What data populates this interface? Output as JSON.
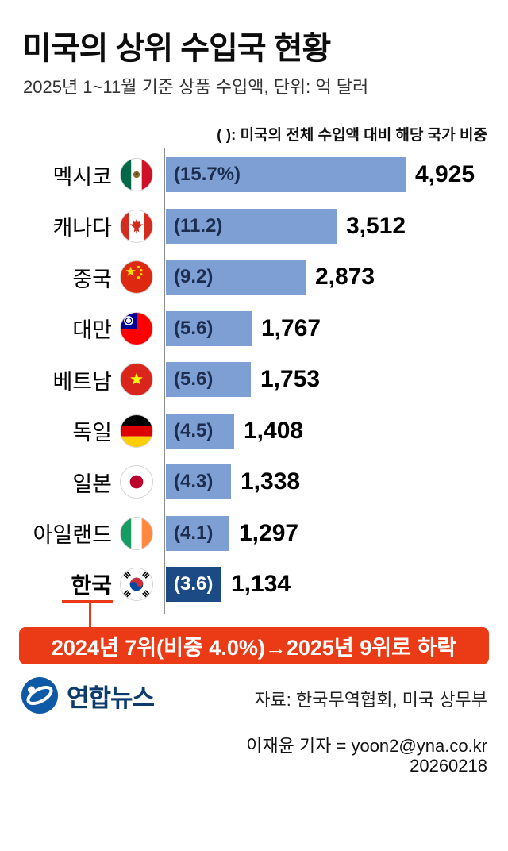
{
  "header": {
    "title": "미국의 상위 수입국 현황",
    "subtitle": "2025년 1~11월 기준 상품 수입액, 단위: 억 달러"
  },
  "chart_data": {
    "type": "bar",
    "orientation": "horizontal",
    "legend_note": "( ): 미국의 전체 수입액 대비 해당 국가 비중",
    "unit": "억 달러",
    "categories": [
      "멕시코",
      "캐나다",
      "중국",
      "대만",
      "베트남",
      "독일",
      "일본",
      "아일랜드",
      "한국"
    ],
    "values": [
      4925,
      3512,
      2873,
      1767,
      1753,
      1408,
      1338,
      1297,
      1134
    ],
    "value_labels": [
      "4,925",
      "3,512",
      "2,873",
      "1,767",
      "1,753",
      "1,408",
      "1,338",
      "1,297",
      "1,134"
    ],
    "shares": [
      "(15.7%)",
      "(11.2)",
      "(9.2)",
      "(5.6)",
      "(5.6)",
      "(4.5)",
      "(4.3)",
      "(4.1)",
      "(3.6)"
    ],
    "flags": [
      "mexico-flag-icon",
      "canada-flag-icon",
      "china-flag-icon",
      "taiwan-flag-icon",
      "vietnam-flag-icon",
      "germany-flag-icon",
      "japan-flag-icon",
      "ireland-flag-icon",
      "south-korea-flag-icon"
    ],
    "highlight_index": 8,
    "colors": {
      "bar": "#7d9fd3",
      "highlight": "#1b4a85",
      "axis": "#8f8f8f",
      "accent": "#ea3b16"
    },
    "xlim": [
      0,
      5000
    ],
    "grid": false,
    "legend_position": "top-right"
  },
  "callout": {
    "text": "2024년 7위(비중 4.0%)→2025년 9위로 하락",
    "background": "#ea3b16",
    "text_color": "#ffffff"
  },
  "footer": {
    "logo_text": "연합뉴스",
    "source": "자료: 한국무역협회, 미국 상무부",
    "credit": "이재윤 기자 = yoon2@yna.co.kr",
    "date": "20260218"
  }
}
